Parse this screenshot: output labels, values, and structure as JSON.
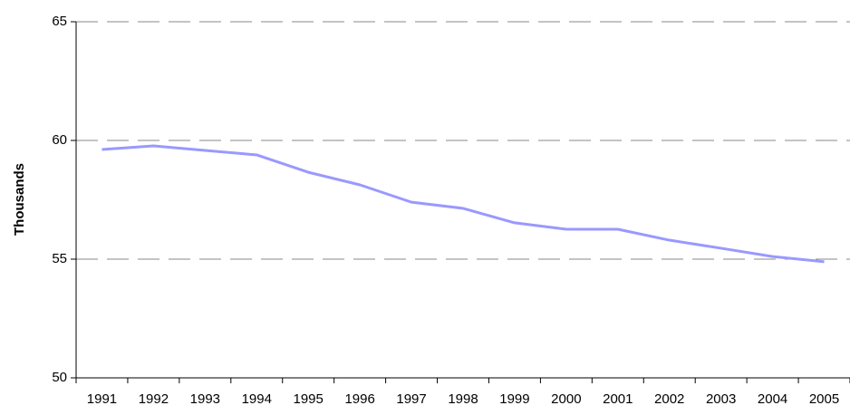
{
  "chart_data": {
    "type": "line",
    "y_label": "Thousands",
    "categories": [
      "1991",
      "1992",
      "1993",
      "1994",
      "1995",
      "1996",
      "1997",
      "1998",
      "1999",
      "2000",
      "2001",
      "2002",
      "2003",
      "2004",
      "2005"
    ],
    "series": [
      {
        "color": "#9999ff",
        "values": [
          59.62,
          59.77,
          59.58,
          59.39,
          58.66,
          58.13,
          57.4,
          57.14,
          56.53,
          56.26,
          56.26,
          55.8,
          55.46,
          55.11,
          54.89
        ]
      }
    ],
    "ylim": [
      50,
      65
    ],
    "yticks": [
      50,
      55,
      60,
      65
    ],
    "grid": true
  }
}
